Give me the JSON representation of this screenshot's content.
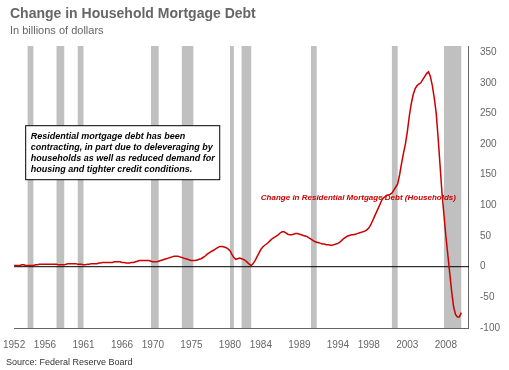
{
  "chart_data": {
    "type": "line",
    "title": "Change in Household Mortgage Debt",
    "subtitle": "In billions of dollars",
    "source": "Source: Federal Reserve Board",
    "color": "#cc0000",
    "grid": false,
    "xlim": [
      1952,
      2011
    ],
    "xticks": [
      1952,
      1956,
      1961,
      1966,
      1970,
      1975,
      1980,
      1984,
      1989,
      1994,
      1998,
      2003,
      2008
    ],
    "ylim": [
      -100,
      360
    ],
    "yticks": [
      -100,
      -50,
      0,
      50,
      100,
      150,
      200,
      250,
      300,
      350
    ],
    "recession_bands": {
      "color": "#c0c0c0",
      "ranges": [
        [
          1953.75,
          1954.5
        ],
        [
          1957.5,
          1958.5
        ],
        [
          1960.25,
          1961.0
        ],
        [
          1969.75,
          1970.75
        ],
        [
          1973.75,
          1975.25
        ],
        [
          1980.0,
          1980.5
        ],
        [
          1981.5,
          1982.75
        ],
        [
          1990.5,
          1991.25
        ],
        [
          2001.0,
          2001.75
        ],
        [
          2007.75,
          2010.0
        ]
      ]
    },
    "reference_lines": [
      {
        "y": 0,
        "color": "#000000"
      }
    ],
    "annotations": [
      {
        "text": "Change in Residential Mortgage Debt (Households)",
        "x": 1984,
        "y": 112,
        "color": "#cc0000"
      },
      {
        "text": "Residential mortgage debt has been\ncontracting, in part due to deleveraging by\nhouseholds as well as reduced demand for\nhousing and tighter credit conditions.",
        "x": 1953.5,
        "y": 230,
        "box": true
      }
    ],
    "x": [
      1952,
      1952.25,
      1952.5,
      1952.75,
      1953,
      1953.25,
      1953.5,
      1953.75,
      1954,
      1954.25,
      1954.5,
      1954.75,
      1955,
      1955.25,
      1955.5,
      1955.75,
      1956,
      1956.25,
      1956.5,
      1956.75,
      1957,
      1957.25,
      1957.5,
      1957.75,
      1958,
      1958.25,
      1958.5,
      1958.75,
      1959,
      1959.25,
      1959.5,
      1959.75,
      1960,
      1960.25,
      1960.5,
      1960.75,
      1961,
      1961.25,
      1961.5,
      1961.75,
      1962,
      1962.25,
      1962.5,
      1962.75,
      1963,
      1963.25,
      1963.5,
      1963.75,
      1964,
      1964.25,
      1964.5,
      1964.75,
      1965,
      1965.25,
      1965.5,
      1965.75,
      1966,
      1966.25,
      1966.5,
      1966.75,
      1967,
      1967.25,
      1967.5,
      1967.75,
      1968,
      1968.25,
      1968.5,
      1968.75,
      1969,
      1969.25,
      1969.5,
      1969.75,
      1970,
      1970.25,
      1970.5,
      1970.75,
      1971,
      1971.25,
      1971.5,
      1971.75,
      1972,
      1972.25,
      1972.5,
      1972.75,
      1973,
      1973.25,
      1973.5,
      1973.75,
      1974,
      1974.25,
      1974.5,
      1974.75,
      1975,
      1975.25,
      1975.5,
      1975.75,
      1976,
      1976.25,
      1976.5,
      1976.75,
      1977,
      1977.25,
      1977.5,
      1977.75,
      1978,
      1978.25,
      1978.5,
      1978.75,
      1979,
      1979.25,
      1979.5,
      1979.75,
      1980,
      1980.25,
      1980.5,
      1980.75,
      1981,
      1981.25,
      1981.5,
      1981.75,
      1982,
      1982.25,
      1982.5,
      1982.75,
      1983,
      1983.25,
      1983.5,
      1983.75,
      1984,
      1984.25,
      1984.5,
      1984.75,
      1985,
      1985.25,
      1985.5,
      1985.75,
      1986,
      1986.25,
      1986.5,
      1986.75,
      1987,
      1987.25,
      1987.5,
      1987.75,
      1988,
      1988.25,
      1988.5,
      1988.75,
      1989,
      1989.25,
      1989.5,
      1989.75,
      1990,
      1990.25,
      1990.5,
      1990.75,
      1991,
      1991.25,
      1991.5,
      1991.75,
      1992,
      1992.25,
      1992.5,
      1992.75,
      1993,
      1993.25,
      1993.5,
      1993.75,
      1994,
      1994.25,
      1994.5,
      1994.75,
      1995,
      1995.25,
      1995.5,
      1995.75,
      1996,
      1996.25,
      1996.5,
      1996.75,
      1997,
      1997.25,
      1997.5,
      1997.75,
      1998,
      1998.25,
      1998.5,
      1998.75,
      1999,
      1999.25,
      1999.5,
      1999.75,
      2000,
      2000.25,
      2000.5,
      2000.75,
      2001,
      2001.25,
      2001.5,
      2001.75,
      2002,
      2002.25,
      2002.5,
      2002.75,
      2003,
      2003.25,
      2003.5,
      2003.75,
      2004,
      2004.25,
      2004.5,
      2004.75,
      2005,
      2005.25,
      2005.5,
      2005.75,
      2006,
      2006.25,
      2006.5,
      2006.75,
      2007,
      2007.25,
      2007.5,
      2007.75,
      2008,
      2008.25,
      2008.5,
      2008.75,
      2009,
      2009.25,
      2009.5,
      2009.75,
      2010
    ],
    "values": [
      2,
      2,
      2,
      2,
      3,
      3,
      2,
      2,
      2,
      2,
      2,
      3,
      3,
      4,
      4,
      4,
      4,
      4,
      4,
      4,
      4,
      4,
      4,
      3,
      3,
      3,
      3,
      4,
      5,
      5,
      5,
      5,
      5,
      4,
      4,
      4,
      3,
      3,
      4,
      4,
      5,
      5,
      5,
      5,
      6,
      6,
      7,
      7,
      7,
      7,
      7,
      7,
      8,
      8,
      8,
      8,
      7,
      7,
      6,
      6,
      6,
      7,
      7,
      8,
      9,
      10,
      10,
      10,
      10,
      10,
      10,
      9,
      8,
      8,
      8,
      9,
      10,
      11,
      12,
      13,
      14,
      15,
      16,
      17,
      17,
      17,
      16,
      15,
      14,
      13,
      12,
      11,
      10,
      10,
      10,
      11,
      12,
      13,
      15,
      17,
      20,
      22,
      24,
      26,
      28,
      30,
      32,
      33,
      33,
      32,
      31,
      29,
      26,
      20,
      15,
      12,
      13,
      14,
      13,
      12,
      10,
      7,
      4,
      2,
      5,
      10,
      16,
      22,
      28,
      32,
      35,
      37,
      40,
      43,
      46,
      48,
      50,
      52,
      55,
      57,
      57,
      55,
      53,
      52,
      52,
      53,
      54,
      54,
      53,
      52,
      51,
      50,
      49,
      47,
      45,
      43,
      41,
      40,
      39,
      38,
      37,
      37,
      36,
      36,
      35,
      35,
      36,
      37,
      38,
      40,
      43,
      46,
      48,
      50,
      51,
      52,
      52,
      53,
      54,
      55,
      56,
      57,
      58,
      60,
      63,
      68,
      75,
      82,
      89,
      96,
      103,
      110,
      113,
      116,
      117,
      118,
      120,
      125,
      130,
      135,
      150,
      168,
      185,
      200,
      220,
      245,
      265,
      280,
      290,
      295,
      298,
      300,
      305,
      310,
      315,
      318,
      310,
      295,
      275,
      250,
      210,
      165,
      120,
      85,
      50,
      20,
      -10,
      -40,
      -65,
      -78,
      -82,
      -82,
      -75
    ]
  }
}
